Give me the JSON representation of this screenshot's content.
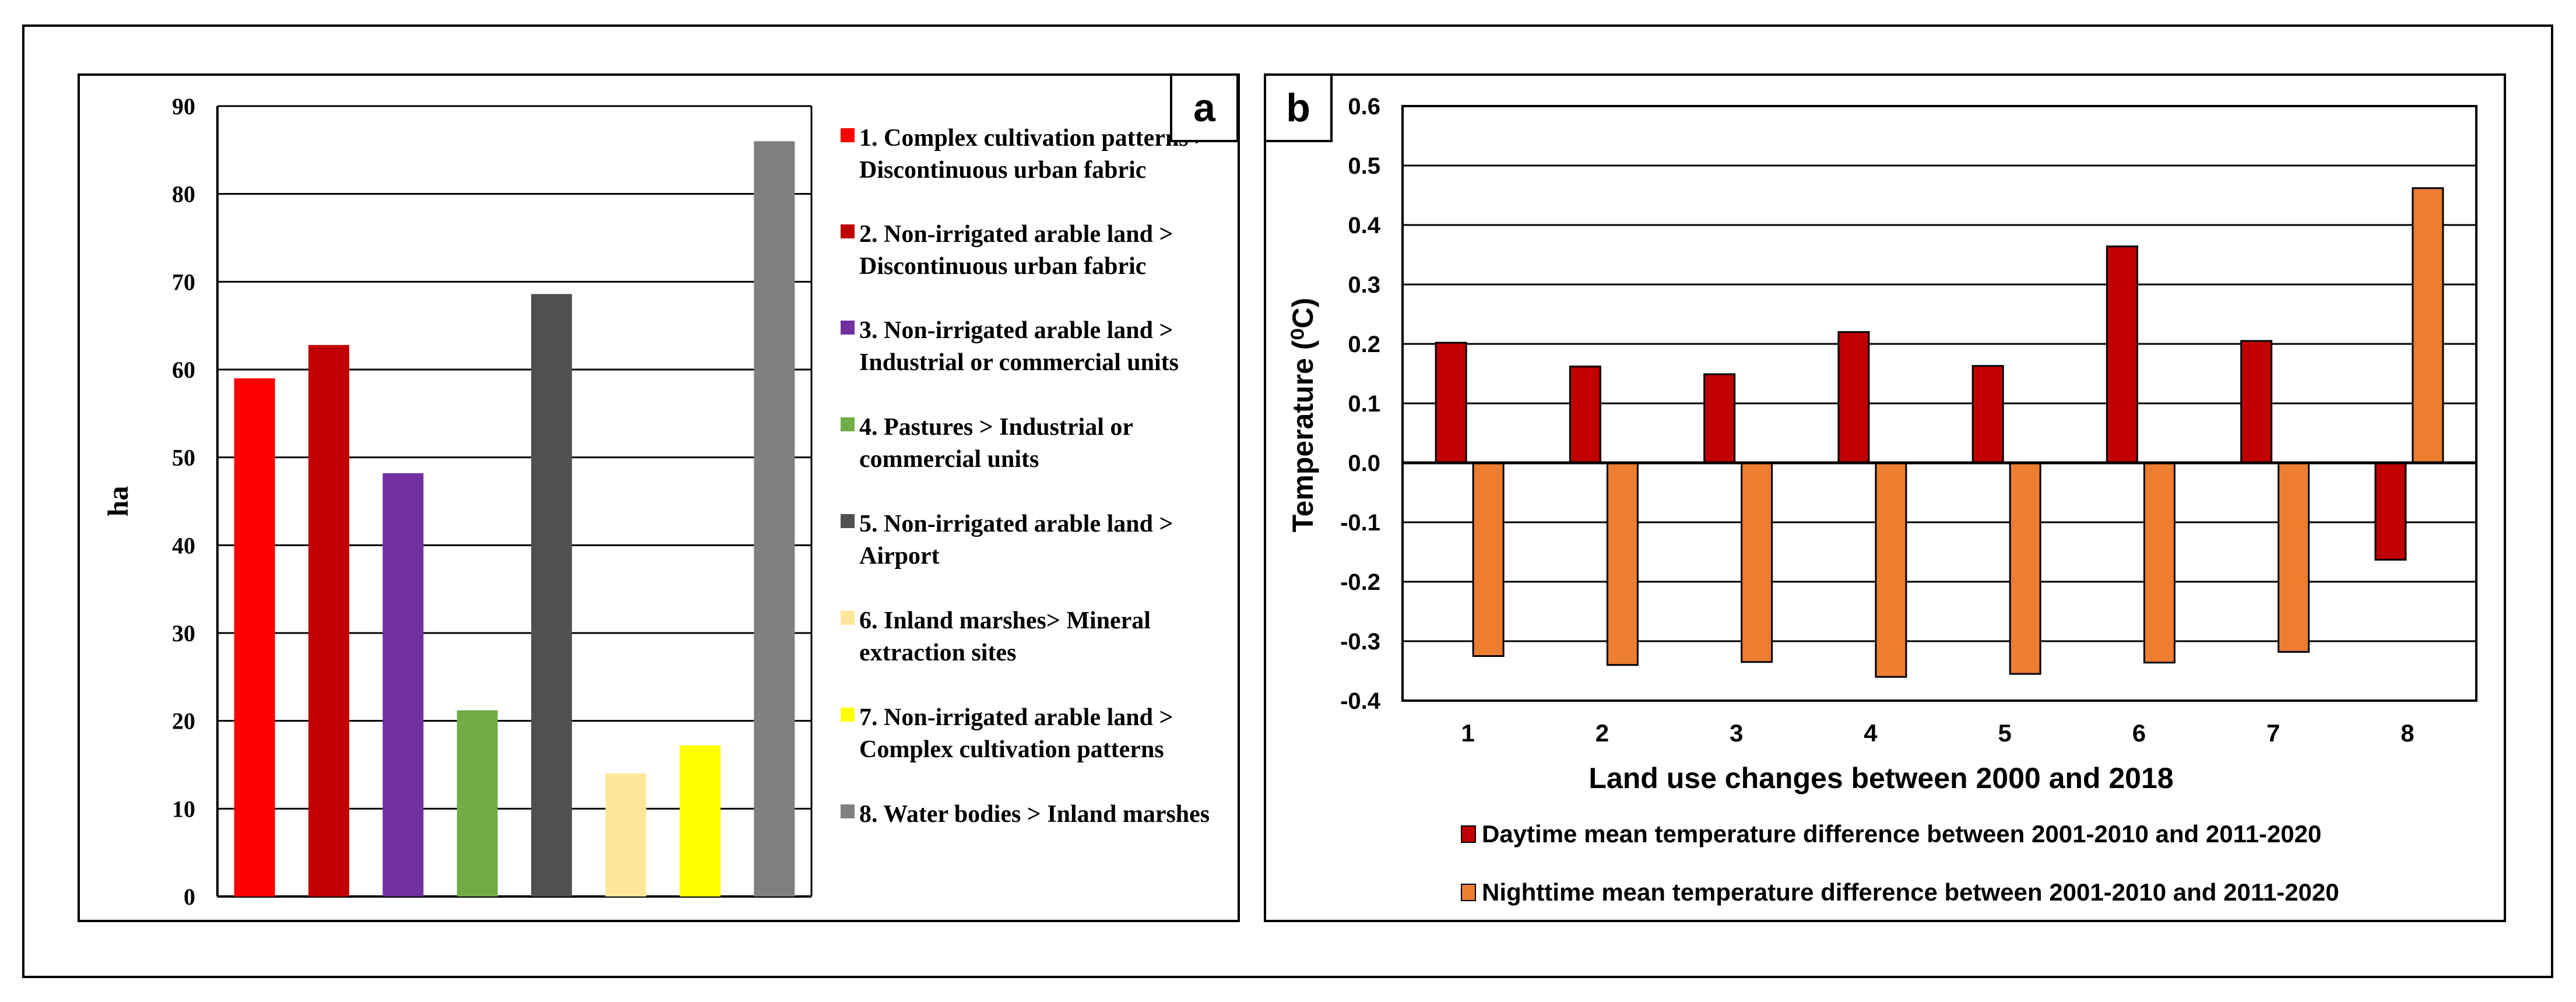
{
  "chart_data": [
    {
      "panel_label": "a",
      "type": "bar",
      "ylabel": "ha",
      "ylim": [
        0,
        90
      ],
      "yticks": [
        0,
        10,
        20,
        30,
        40,
        50,
        60,
        70,
        80,
        90
      ],
      "grid": true,
      "legend_position": "right",
      "categories": [
        "1",
        "2",
        "3",
        "4",
        "5",
        "6",
        "7",
        "8"
      ],
      "values": [
        59,
        62.8,
        48.2,
        21.2,
        68.6,
        14,
        17.2,
        86
      ],
      "colors": [
        "#ff0000",
        "#c00000",
        "#7030a0",
        "#70ad47",
        "#505050",
        "#ffe699",
        "#ffff00",
        "#808080"
      ],
      "legend": [
        "1. Complex cultivation patterns > Discontinuous urban fabric",
        "2. Non-irrigated arable land > Discontinuous urban fabric",
        "3. Non-irrigated arable land > Industrial or commercial units",
        "4. Pastures > Industrial or commercial units",
        "5. Non-irrigated arable land > Airport",
        "6. Inland marshes> Mineral extraction sites",
        "7. Non-irrigated arable land > Complex cultivation patterns",
        "8. Water bodies > Inland marshes"
      ]
    },
    {
      "panel_label": "b",
      "type": "bar",
      "xlabel": "Land use changes between 2000 and 2018",
      "ylabel": "Temperature (⁰C)",
      "ylim": [
        -0.4,
        0.6
      ],
      "yticks": [
        "0.6",
        "0.5",
        "0.4",
        "0.3",
        "0.2",
        "0.1",
        "0.0",
        "-0.1",
        "-0.2",
        "-0.3",
        "-0.4"
      ],
      "grid": true,
      "legend_position": "bottom",
      "categories": [
        "1",
        "2",
        "3",
        "4",
        "5",
        "6",
        "7",
        "8"
      ],
      "series": [
        {
          "name": "Daytime mean temperature difference between 2001-2010 and 2011-2020",
          "color": "#c00000",
          "values": [
            0.202,
            0.162,
            0.149,
            0.22,
            0.163,
            0.364,
            0.205,
            -0.163
          ]
        },
        {
          "name": "Nighttime mean temperature difference between 2001-2010 and 2011-2020",
          "color": "#ed7d31",
          "values": [
            -0.325,
            -0.34,
            -0.335,
            -0.36,
            -0.355,
            -0.336,
            -0.318,
            0.462
          ]
        }
      ]
    }
  ]
}
